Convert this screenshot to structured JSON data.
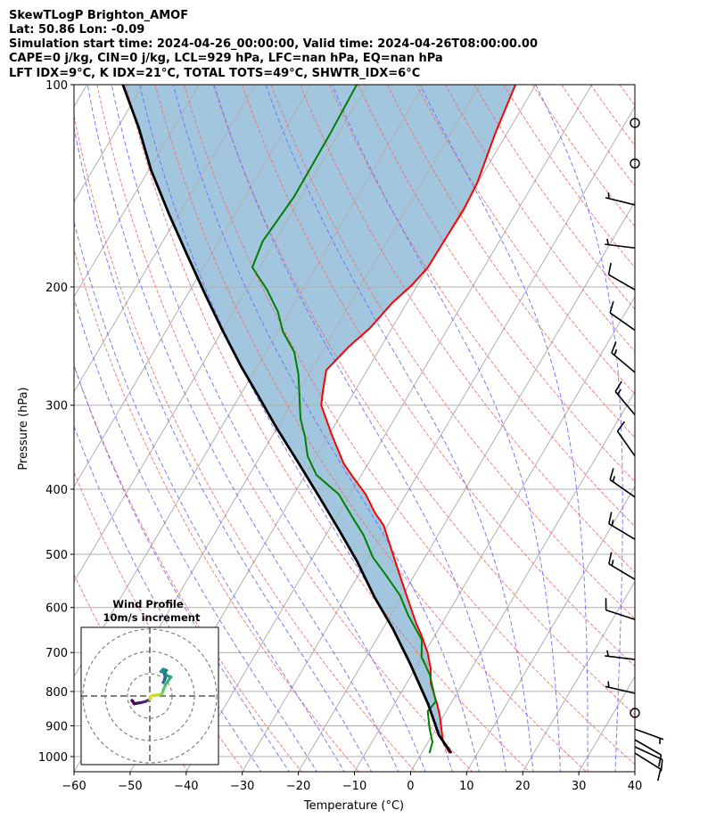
{
  "title_lines": [
    "SkewTLogP Brighton_AMOF",
    "Lat: 50.86   Lon: -0.09",
    "Simulation start time: 2024-04-26_00:00:00, Valid time: 2024-04-26T08:00:00.00",
    "CAPE=0 j/kg, CIN=0 j/kg, LCL=929 hPa, LFC=nan hPa, EQ=nan hPa",
    "LFT IDX=9°C, K IDX=21°C, TOTAL TOTS=49°C, SHWTR_IDX=6°C"
  ],
  "chart_data": {
    "type": "line",
    "title": "SkewTLogP Brighton_AMOF",
    "xlabel": "Temperature (°C)",
    "ylabel": "Pressure (hPa)",
    "xlim": [
      -60,
      40
    ],
    "ylim": [
      1050,
      100
    ],
    "x_ticks": [
      -60,
      -50,
      -40,
      -30,
      -20,
      -10,
      0,
      10,
      20,
      30,
      40
    ],
    "x_tick_labels": [
      "−60",
      "−50",
      "−40",
      "−30",
      "−20",
      "−10",
      "0",
      "10",
      "20",
      "30",
      "40"
    ],
    "y_ticks": [
      100,
      200,
      300,
      400,
      500,
      600,
      700,
      800,
      900,
      1000
    ],
    "y_tick_labels": [
      "100",
      "200",
      "300",
      "400",
      "500",
      "600",
      "700",
      "800",
      "900",
      "1000"
    ],
    "grid": true,
    "colors": {
      "temperature": "#ff0000",
      "dewpoint": "#008000",
      "parcel": "#000000",
      "fill": "#a3c6df",
      "isotherm": "#b0b0b0",
      "dry_adiabat": "#f26b6b",
      "moist_adiabat": "#6b6bff"
    },
    "series": [
      {
        "name": "temperature",
        "points": [
          [
            988,
            5.0
          ],
          [
            952,
            2.7
          ],
          [
            869,
            -0.7
          ],
          [
            835,
            -2.4
          ],
          [
            778,
            -5.7
          ],
          [
            739,
            -7.3
          ],
          [
            702,
            -9.4
          ],
          [
            660,
            -12.4
          ],
          [
            635,
            -14.5
          ],
          [
            597,
            -17.5
          ],
          [
            545,
            -21.9
          ],
          [
            497,
            -26.3
          ],
          [
            453,
            -30.7
          ],
          [
            433,
            -33.7
          ],
          [
            407,
            -37.2
          ],
          [
            383,
            -41.4
          ],
          [
            366,
            -44.4
          ],
          [
            332,
            -49.5
          ],
          [
            300,
            -54.5
          ],
          [
            287,
            -55.6
          ],
          [
            266,
            -57.3
          ],
          [
            246,
            -55.8
          ],
          [
            230,
            -53.9
          ],
          [
            211,
            -52.6
          ],
          [
            199,
            -51.0
          ],
          [
            187,
            -50.0
          ],
          [
            173,
            -49.9
          ],
          [
            153,
            -49.7
          ],
          [
            140,
            -50.1
          ],
          [
            118,
            -52.1
          ],
          [
            100,
            -53.6
          ]
        ]
      },
      {
        "name": "dewpoint",
        "points": [
          [
            988,
            1.4
          ],
          [
            952,
            0.8
          ],
          [
            907,
            -1.2
          ],
          [
            856,
            -3.3
          ],
          [
            828,
            -2.9
          ],
          [
            755,
            -6.8
          ],
          [
            711,
            -10.1
          ],
          [
            670,
            -11.9
          ],
          [
            616,
            -16.9
          ],
          [
            575,
            -20.5
          ],
          [
            536,
            -25.2
          ],
          [
            505,
            -29.3
          ],
          [
            468,
            -33.3
          ],
          [
            440,
            -37.2
          ],
          [
            407,
            -42.0
          ],
          [
            381,
            -48.0
          ],
          [
            357,
            -51.6
          ],
          [
            334,
            -54.1
          ],
          [
            314,
            -56.8
          ],
          [
            300,
            -58.3
          ],
          [
            270,
            -61.8
          ],
          [
            250,
            -64.9
          ],
          [
            233,
            -69.1
          ],
          [
            218,
            -72.0
          ],
          [
            202,
            -76.3
          ],
          [
            187,
            -81.3
          ],
          [
            171,
            -82.2
          ],
          [
            147,
            -81.3
          ],
          [
            118,
            -81.5
          ],
          [
            100,
            -81.9
          ]
        ]
      },
      {
        "name": "parcel",
        "points": [
          [
            988,
            5.3
          ],
          [
            929,
            1.2
          ],
          [
            835,
            -4.0
          ],
          [
            728,
            -11.4
          ],
          [
            644,
            -18.3
          ],
          [
            579,
            -24.8
          ],
          [
            512,
            -31.7
          ],
          [
            460,
            -38.2
          ],
          [
            414,
            -44.7
          ],
          [
            366,
            -52.4
          ],
          [
            324,
            -60.1
          ],
          [
            291,
            -66.6
          ],
          [
            262,
            -73.0
          ],
          [
            232,
            -80.0
          ],
          [
            205,
            -86.9
          ],
          [
            179,
            -94.3
          ],
          [
            156,
            -101.7
          ],
          [
            134,
            -109.6
          ],
          [
            116,
            -116.2
          ],
          [
            100,
            -123.6
          ]
        ]
      }
    ],
    "wind_barbs": [
      {
        "p": 114,
        "dir": 0,
        "speed_kt": 0
      },
      {
        "p": 131,
        "dir": 0,
        "speed_kt": 0
      },
      {
        "p": 151,
        "dir": 256,
        "speed_kt": 5
      },
      {
        "p": 175,
        "dir": 263,
        "speed_kt": 5
      },
      {
        "p": 202,
        "dir": 240,
        "speed_kt": 10
      },
      {
        "p": 232,
        "dir": 235,
        "speed_kt": 10
      },
      {
        "p": 268,
        "dir": 230,
        "speed_kt": 15
      },
      {
        "p": 310,
        "dir": 220,
        "speed_kt": 15
      },
      {
        "p": 357,
        "dir": 215,
        "speed_kt": 10
      },
      {
        "p": 411,
        "dir": 235,
        "speed_kt": 15
      },
      {
        "p": 475,
        "dir": 239,
        "speed_kt": 15
      },
      {
        "p": 545,
        "dir": 239,
        "speed_kt": 15
      },
      {
        "p": 625,
        "dir": 252,
        "speed_kt": 10
      },
      {
        "p": 717,
        "dir": 263,
        "speed_kt": 5
      },
      {
        "p": 805,
        "dir": 257,
        "speed_kt": 5
      },
      {
        "p": 861,
        "dir": 0,
        "speed_kt": 0
      },
      {
        "p": 910,
        "dir": 70,
        "speed_kt": 5
      },
      {
        "p": 944,
        "dir": 60,
        "speed_kt": 10
      },
      {
        "p": 967,
        "dir": 65,
        "speed_kt": 10
      },
      {
        "p": 988,
        "dir": 58,
        "speed_kt": 10
      }
    ],
    "hodograph": {
      "title": "Wind Profile",
      "subtitle": "10m/s increment",
      "ring_increment_ms": 10,
      "rings": 3,
      "points_uv": [
        [
          -7.5,
          -2.5
        ],
        [
          -8,
          -2
        ],
        [
          -7,
          -3.5
        ],
        [
          -5.5,
          -3.2
        ],
        [
          -4,
          -3
        ],
        [
          -2,
          -2.5
        ],
        [
          0,
          -1.5
        ],
        [
          0.5,
          0
        ],
        [
          2,
          0.3
        ],
        [
          4,
          0.5
        ],
        [
          5.5,
          1
        ],
        [
          6,
          2.5
        ],
        [
          7,
          5
        ],
        [
          8,
          6.5
        ],
        [
          9.5,
          8.5
        ],
        [
          8,
          9
        ],
        [
          6.5,
          10.5
        ],
        [
          5,
          11
        ],
        [
          6,
          12
        ],
        [
          7.5,
          11.5
        ],
        [
          6.5,
          10
        ],
        [
          7,
          8
        ],
        [
          6,
          6
        ]
      ],
      "segment_colors": [
        "#440154",
        "#440154",
        "#45085b",
        "#46135f",
        "#472063",
        "#46306b",
        "#d8e219",
        "#e5e419",
        "#c2df23",
        "#aadc32",
        "#86d549",
        "#5ec962",
        "#3fbc73",
        "#2db27d",
        "#25a584",
        "#1fa088",
        "#1f958b",
        "#21918c",
        "#23898e",
        "#26828e",
        "#2c728e",
        "#33638d",
        "#3b528b"
      ]
    }
  }
}
